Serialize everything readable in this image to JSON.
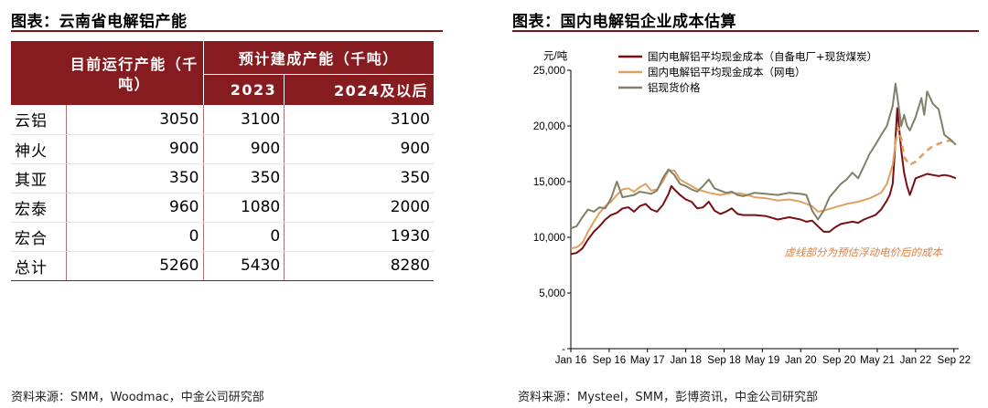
{
  "left": {
    "title": "图表：云南省电解铝产能",
    "source": "资料来源：SMM，Woodmac，中金公司研究部",
    "table": {
      "header_current": "目前运行产能（千吨）",
      "header_planned": "预计建成产能（千吨）",
      "sub_2023": "2023",
      "sub_2024": "2024及以后",
      "rows": [
        {
          "name": "云铝",
          "current": "3050",
          "y2023": "3100",
          "y2024": "3100"
        },
        {
          "name": "神火",
          "current": "900",
          "y2023": "900",
          "y2024": "900"
        },
        {
          "name": "其亚",
          "current": "350",
          "y2023": "350",
          "y2024": "350"
        },
        {
          "name": "宏泰",
          "current": "960",
          "y2023": "1080",
          "y2024": "2000"
        },
        {
          "name": "宏合",
          "current": "0",
          "y2023": "0",
          "y2024": "1930"
        }
      ],
      "total": {
        "name": "总计",
        "current": "5260",
        "y2023": "5430",
        "y2024": "8280"
      }
    }
  },
  "right": {
    "title": "图表：国内电解铝企业成本估算",
    "source": "资料来源：Mysteel，SMM，彭博资讯，中金公司研究部"
  },
  "chart_data": {
    "type": "line",
    "unit_label": "元/吨",
    "ylim": [
      0,
      25000
    ],
    "yticks": [
      "-",
      "5,000",
      "10,000",
      "15,000",
      "20,000",
      "25,000"
    ],
    "ytick_values": [
      0,
      5000,
      10000,
      15000,
      20000,
      25000
    ],
    "xlim": [
      2016.0,
      2022.75
    ],
    "xticks": [
      "Jan 16",
      "Sep 16",
      "May 17",
      "Jan 18",
      "Sep 18",
      "May 19",
      "Jan 20",
      "Sep 20",
      "May 21",
      "Jan 22",
      "Sep 22"
    ],
    "xtick_values": [
      2016.0,
      2016.667,
      2017.333,
      2018.0,
      2018.667,
      2019.333,
      2020.0,
      2020.667,
      2021.333,
      2022.0,
      2022.667
    ],
    "annotation": "虚线部分为预估浮动电价后的成本",
    "colors": {
      "captive": "#7a0e12",
      "grid": "#e0a060",
      "spot": "#7f8068"
    },
    "series": [
      {
        "name": "国内电解铝平均现金成本（自备电厂+现货煤炭）",
        "color": "#7a0e12",
        "x": [
          2016.0,
          2016.1,
          2016.2,
          2016.3,
          2016.4,
          2016.5,
          2016.6,
          2016.7,
          2016.8,
          2016.9,
          2017.0,
          2017.1,
          2017.2,
          2017.3,
          2017.4,
          2017.5,
          2017.6,
          2017.7,
          2017.75,
          2017.8,
          2017.9,
          2018.0,
          2018.1,
          2018.2,
          2018.3,
          2018.4,
          2018.5,
          2018.6,
          2018.7,
          2018.8,
          2018.9,
          2019.0,
          2019.2,
          2019.4,
          2019.6,
          2019.8,
          2020.0,
          2020.1,
          2020.2,
          2020.3,
          2020.4,
          2020.5,
          2020.6,
          2020.7,
          2020.8,
          2020.9,
          2021.0,
          2021.1,
          2021.2,
          2021.3,
          2021.4,
          2021.5,
          2021.55,
          2021.6,
          2021.63,
          2021.68,
          2021.75,
          2021.8,
          2021.85,
          2021.9,
          2022.0,
          2022.1,
          2022.2,
          2022.3,
          2022.4,
          2022.5,
          2022.6,
          2022.7
        ],
        "y": [
          8500,
          8600,
          9000,
          9800,
          10500,
          11000,
          11600,
          12000,
          12200,
          12600,
          12700,
          12300,
          12800,
          13000,
          12500,
          12300,
          12900,
          13900,
          14600,
          14300,
          13800,
          13400,
          13200,
          12600,
          12700,
          13200,
          12400,
          12100,
          12300,
          12600,
          12100,
          12000,
          12000,
          11900,
          11600,
          11800,
          11600,
          11400,
          11500,
          11000,
          10500,
          10500,
          10900,
          11200,
          11300,
          11400,
          11300,
          11600,
          11800,
          12000,
          12500,
          13300,
          13800,
          14800,
          17000,
          21600,
          17800,
          15800,
          14600,
          13800,
          15300,
          15500,
          15700,
          15600,
          15500,
          15600,
          15500,
          15300
        ]
      },
      {
        "name": "国内电解铝平均现金成本（网电）",
        "color": "#e0a060",
        "x": [
          2016.0,
          2016.1,
          2016.2,
          2016.3,
          2016.4,
          2016.5,
          2016.6,
          2016.7,
          2016.8,
          2016.9,
          2017.0,
          2017.1,
          2017.2,
          2017.3,
          2017.4,
          2017.5,
          2017.6,
          2017.7,
          2017.8,
          2017.9,
          2018.0,
          2018.2,
          2018.4,
          2018.6,
          2018.8,
          2019.0,
          2019.2,
          2019.4,
          2019.6,
          2019.8,
          2020.0,
          2020.2,
          2020.3,
          2020.4,
          2020.6,
          2020.8,
          2021.0,
          2021.2,
          2021.4,
          2021.5,
          2021.6,
          2021.65
        ],
        "y": [
          9000,
          9100,
          9500,
          10500,
          11400,
          12200,
          12800,
          13200,
          13800,
          14300,
          14400,
          14100,
          14500,
          14800,
          14200,
          14300,
          15000,
          16000,
          16000,
          15200,
          14900,
          14300,
          14000,
          13800,
          14000,
          13900,
          13600,
          13500,
          13300,
          13400,
          13200,
          12800,
          12300,
          12400,
          12700,
          13000,
          13200,
          13500,
          14000,
          14800,
          16500,
          18500
        ]
      },
      {
        "name": "国内电解铝平均现金成本（网电）预估浮动电价",
        "color": "#e0a060",
        "dashed": true,
        "x": [
          2021.65,
          2021.7,
          2021.75,
          2021.8,
          2021.9,
          2022.0,
          2022.1,
          2022.2,
          2022.3,
          2022.4,
          2022.5,
          2022.6,
          2022.7
        ],
        "y": [
          18500,
          19800,
          18800,
          17200,
          16500,
          16800,
          17300,
          17800,
          18200,
          18400,
          18600,
          18700,
          18500
        ]
      },
      {
        "name": "铝现货价格",
        "color": "#7f8068",
        "x": [
          2016.0,
          2016.1,
          2016.2,
          2016.3,
          2016.4,
          2016.5,
          2016.6,
          2016.7,
          2016.8,
          2016.9,
          2017.0,
          2017.1,
          2017.2,
          2017.3,
          2017.4,
          2017.5,
          2017.6,
          2017.7,
          2017.8,
          2017.9,
          2018.0,
          2018.1,
          2018.2,
          2018.3,
          2018.4,
          2018.5,
          2018.6,
          2018.7,
          2018.8,
          2018.9,
          2019.0,
          2019.2,
          2019.4,
          2019.6,
          2019.8,
          2020.0,
          2020.1,
          2020.2,
          2020.3,
          2020.4,
          2020.5,
          2020.6,
          2020.7,
          2020.8,
          2020.9,
          2021.0,
          2021.1,
          2021.2,
          2021.3,
          2021.4,
          2021.5,
          2021.6,
          2021.65,
          2021.7,
          2021.75,
          2021.8,
          2021.85,
          2021.9,
          2022.0,
          2022.1,
          2022.15,
          2022.2,
          2022.3,
          2022.4,
          2022.5,
          2022.6,
          2022.7
        ],
        "y": [
          10800,
          11000,
          11800,
          12500,
          12300,
          12700,
          12600,
          13500,
          15000,
          13600,
          13700,
          13800,
          14100,
          14000,
          13900,
          14200,
          15300,
          16100,
          15600,
          14800,
          14600,
          14300,
          14100,
          14600,
          15200,
          14400,
          14200,
          14000,
          14100,
          13800,
          13700,
          14000,
          13900,
          13800,
          14000,
          13900,
          13800,
          12400,
          11600,
          12400,
          13600,
          14200,
          14800,
          15200,
          15800,
          15300,
          16400,
          17500,
          18300,
          19200,
          20000,
          21800,
          23800,
          22000,
          20000,
          21000,
          20000,
          19600,
          20800,
          22500,
          21000,
          23100,
          22000,
          21500,
          19200,
          18800,
          18300
        ]
      }
    ]
  }
}
